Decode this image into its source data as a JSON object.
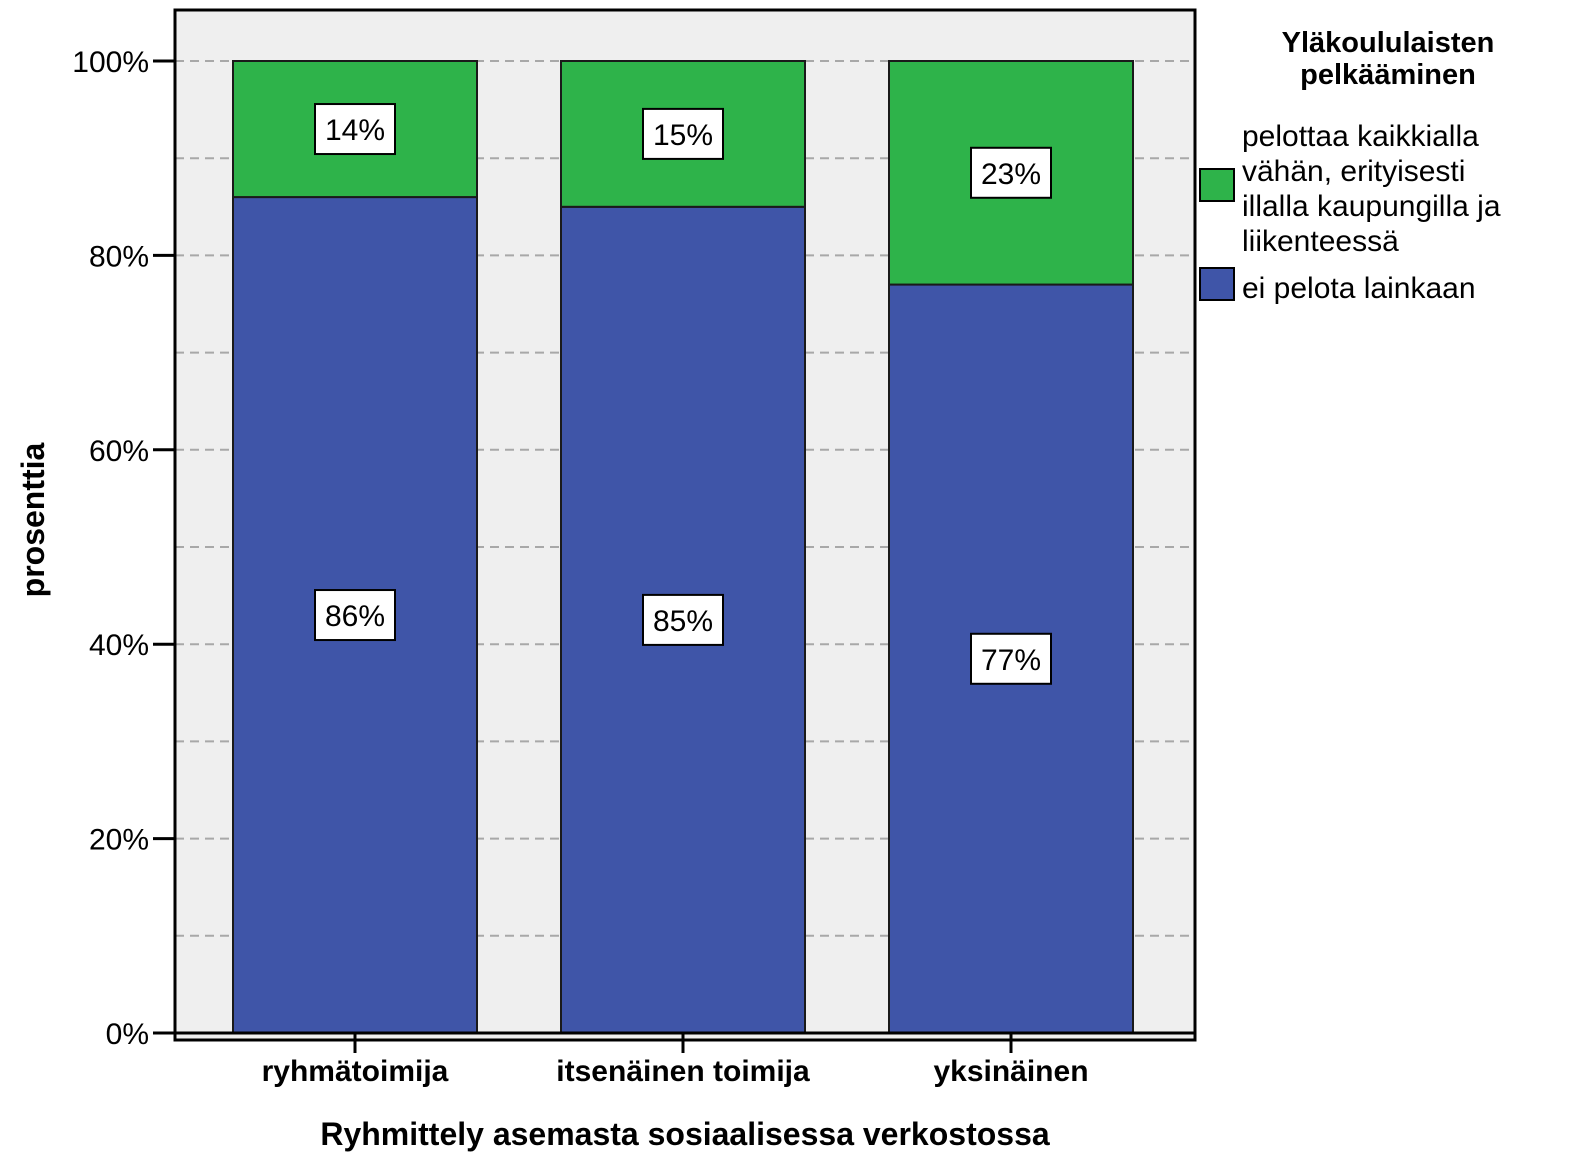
{
  "chart_data": {
    "type": "bar",
    "stacked": true,
    "categories": [
      "ryhmätoimija",
      "itsenäinen toimija",
      "yksinäinen"
    ],
    "series": [
      {
        "name": "ei pelota lainkaan",
        "color": "#3f55a8",
        "values": [
          86,
          85,
          77
        ],
        "labels": [
          "86%",
          "85%",
          "77%"
        ]
      },
      {
        "name": "pelottaa kaikkialla vähän, erityisesti illalla kaupungilla ja liikenteessä",
        "name_lines": [
          "pelottaa kaikkialla",
          "vähän, erityisesti",
          "illalla kaupungilla ja",
          "liikenteessä"
        ],
        "color": "#2eb34a",
        "values": [
          14,
          15,
          23
        ],
        "labels": [
          "14%",
          "15%",
          "23%"
        ]
      }
    ],
    "xlabel": "Ryhmittely asemasta sosiaalisessa verkostossa",
    "ylabel": "prosenttia",
    "ylim": [
      0,
      100
    ],
    "yticks": [
      0,
      20,
      40,
      60,
      80,
      100
    ],
    "ytick_labels": [
      "0%",
      "20%",
      "40%",
      "60%",
      "80%",
      "100%"
    ],
    "minor_grid": [
      10,
      30,
      50,
      70,
      90
    ],
    "grid": true,
    "legend_title": "Yläkoululaisten pelkääminen",
    "legend_title_lines": [
      "Yläkoululaisten",
      "pelkääminen"
    ],
    "legend_placement": "right",
    "plot_background": "#efefef"
  }
}
